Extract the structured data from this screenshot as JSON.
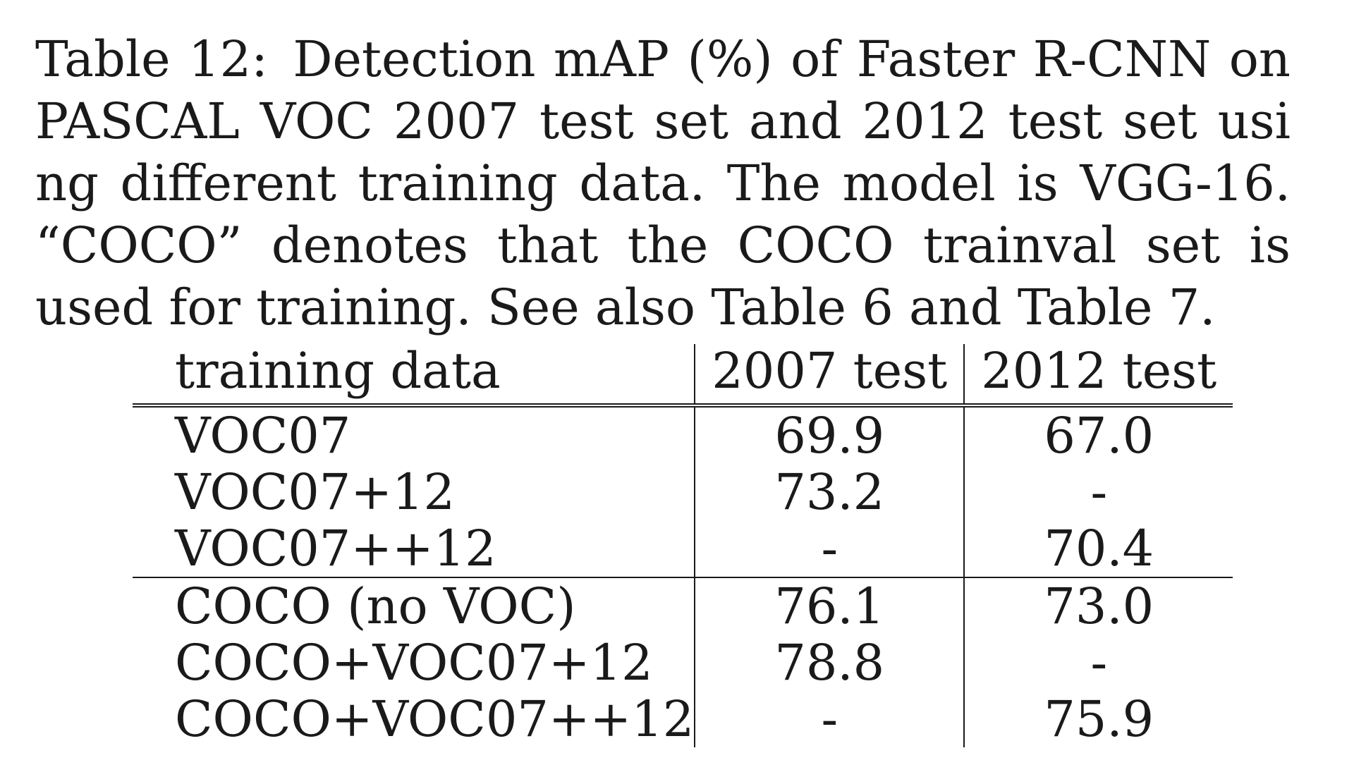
{
  "caption": {
    "label": "Table 12:",
    "text": "Detection mAP (%) of Faster R-CNN on PASCAL VOC 2007 test set and 2012 test set us­i​ng different training data. The model is VGG-16. “COCO” denotes that the COCO trainval set is used for training. See also Table 6 and Table 7."
  },
  "table": {
    "headers": [
      "training data",
      "2007 test",
      "2012 test"
    ],
    "groups": [
      [
        {
          "training": "VOC07",
          "test2007": "69.9",
          "test2012": "67.0"
        },
        {
          "training": "VOC07+12",
          "test2007": "73.2",
          "test2012": "-"
        },
        {
          "training": "VOC07++12",
          "test2007": "-",
          "test2012": "70.4"
        }
      ],
      [
        {
          "training": "COCO (no VOC)",
          "test2007": "76.1",
          "test2012": "73.0"
        },
        {
          "training": "COCO+VOC07+12",
          "test2007": "78.8",
          "test2012": "-"
        },
        {
          "training": "COCO+VOC07++12",
          "test2007": "-",
          "test2012": "75.9"
        }
      ]
    ],
    "bold_cells": [
      "COCO+VOC07+12 / 2007 test",
      "COCO+VOC07++12 / 2012 test"
    ]
  }
}
